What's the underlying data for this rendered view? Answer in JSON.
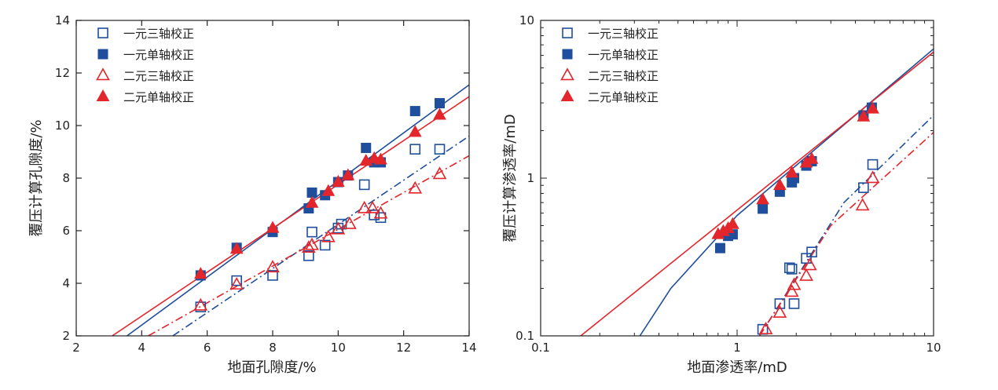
{
  "colors": {
    "blue": "#1f4e9c",
    "red": "#e3262c",
    "axis": "#222222"
  },
  "chart_data": [
    {
      "type": "scatter",
      "xlabel": "地面孔隙度/%",
      "ylabel": "覆压计算孔隙度/%",
      "xlim": [
        2,
        14
      ],
      "ylim": [
        2,
        14
      ],
      "xticks": [
        "2",
        "4",
        "6",
        "8",
        "10",
        "12",
        "14"
      ],
      "yticks": [
        "2",
        "4",
        "6",
        "8",
        "10",
        "12",
        "14"
      ],
      "legend_position": "top-left",
      "series": [
        {
          "name": "一元三轴校正",
          "marker": "square-open",
          "color": "#1f4e9c",
          "x": [
            5.8,
            6.9,
            8.0,
            9.1,
            9.2,
            9.6,
            10.0,
            10.1,
            10.8,
            11.1,
            11.3,
            12.35,
            13.1
          ],
          "y": [
            3.1,
            4.1,
            4.3,
            5.05,
            5.95,
            5.45,
            6.1,
            6.25,
            7.75,
            6.6,
            6.5,
            9.1,
            9.1
          ]
        },
        {
          "name": "一元单轴校正",
          "marker": "square-filled",
          "color": "#1f4e9c",
          "x": [
            5.8,
            6.9,
            8.0,
            9.1,
            9.2,
            9.6,
            10.0,
            10.3,
            10.85,
            11.1,
            11.3,
            12.35,
            13.1
          ],
          "y": [
            4.3,
            5.35,
            5.95,
            6.85,
            7.45,
            7.35,
            7.85,
            8.1,
            9.15,
            8.6,
            8.6,
            10.55,
            10.85
          ]
        },
        {
          "name": "二元三轴校正",
          "marker": "triangle-open",
          "color": "#e3262c",
          "x": [
            5.8,
            6.9,
            8.0,
            9.1,
            9.2,
            9.7,
            10.0,
            10.35,
            10.8,
            11.05,
            11.3,
            12.35,
            13.1
          ],
          "y": [
            3.15,
            3.95,
            4.6,
            5.35,
            5.45,
            5.75,
            6.05,
            6.25,
            6.85,
            6.85,
            6.65,
            7.6,
            8.15
          ]
        },
        {
          "name": "二元单轴校正",
          "marker": "triangle-filled",
          "color": "#e3262c",
          "x": [
            5.8,
            6.9,
            8.0,
            9.2,
            9.7,
            10.0,
            10.3,
            10.85,
            11.1,
            11.3,
            12.35,
            13.1
          ],
          "y": [
            4.35,
            5.3,
            6.1,
            7.05,
            7.5,
            7.85,
            8.1,
            8.65,
            8.75,
            8.7,
            9.75,
            10.4
          ]
        }
      ],
      "lines": [
        {
          "series": "一元单轴校正",
          "style": "solid",
          "color": "#1f4e9c",
          "x": [
            3.55,
            14
          ],
          "y": [
            2,
            11.55
          ]
        },
        {
          "series": "二元单轴校正",
          "style": "solid",
          "color": "#e3262c",
          "x": [
            3.1,
            14
          ],
          "y": [
            2,
            11.1
          ]
        },
        {
          "series": "一元三轴校正",
          "style": "dashdot",
          "color": "#1f4e9c",
          "x": [
            4.95,
            14
          ],
          "y": [
            2,
            9.6
          ]
        },
        {
          "series": "二元三轴校正",
          "style": "dashdot",
          "color": "#e3262c",
          "x": [
            4.2,
            14
          ],
          "y": [
            2,
            8.85
          ]
        }
      ]
    },
    {
      "type": "scatter",
      "scale": "log-log",
      "xlabel": "地面渗透率/mD",
      "ylabel": "覆压计算渗透率/mD",
      "xlim": [
        0.1,
        10
      ],
      "ylim": [
        0.1,
        10
      ],
      "xticks": [
        "0.1",
        "1",
        "10"
      ],
      "yticks": [
        "0.1",
        "1",
        "10"
      ],
      "legend_position": "top-left",
      "series": [
        {
          "name": "一元三轴校正",
          "marker": "square-open",
          "color": "#1f4e9c",
          "x": [
            1.35,
            1.65,
            1.85,
            1.9,
            1.95,
            2.25,
            2.4,
            4.4,
            4.9
          ],
          "y": [
            0.11,
            0.16,
            0.27,
            0.265,
            0.16,
            0.31,
            0.34,
            0.87,
            1.22
          ]
        },
        {
          "name": "一元单轴校正",
          "marker": "square-filled",
          "color": "#1f4e9c",
          "x": [
            0.82,
            0.9,
            0.95,
            1.35,
            1.65,
            1.9,
            1.95,
            2.25,
            2.4,
            4.4,
            4.85
          ],
          "y": [
            0.36,
            0.43,
            0.44,
            0.64,
            0.82,
            0.94,
            1.0,
            1.2,
            1.28,
            2.5,
            2.8
          ]
        },
        {
          "name": "二元三轴校正",
          "marker": "triangle-open",
          "color": "#e3262c",
          "x": [
            1.4,
            1.65,
            1.9,
            1.95,
            2.25,
            2.35,
            4.35,
            4.9
          ],
          "y": [
            0.11,
            0.14,
            0.19,
            0.21,
            0.24,
            0.28,
            0.67,
            1.0
          ]
        },
        {
          "name": "二元单轴校正",
          "marker": "triangle-filled",
          "color": "#e3262c",
          "x": [
            0.8,
            0.85,
            0.9,
            0.95,
            1.35,
            1.65,
            1.9,
            2.25,
            2.4,
            4.4,
            4.9
          ],
          "y": [
            0.44,
            0.46,
            0.48,
            0.51,
            0.73,
            0.9,
            1.08,
            1.25,
            1.32,
            2.45,
            2.75
          ]
        }
      ],
      "lines": [
        {
          "series": "一元单轴校正",
          "style": "solid",
          "color": "#1f4e9c",
          "x": [
            0.32,
            0.46,
            1.0,
            10
          ],
          "y": [
            0.1,
            0.2,
            0.58,
            6.6
          ]
        },
        {
          "series": "二元单轴校正",
          "style": "solid",
          "color": "#e3262c",
          "x": [
            0.16,
            10
          ],
          "y": [
            0.1,
            6.3
          ]
        },
        {
          "series": "一元三轴校正",
          "style": "dashdot",
          "color": "#1f4e9c",
          "x": [
            1.3,
            3.5,
            10
          ],
          "y": [
            0.1,
            0.7,
            2.5
          ]
        },
        {
          "series": "二元三轴校正",
          "style": "dashdot",
          "color": "#e3262c",
          "x": [
            1.3,
            3.0,
            10
          ],
          "y": [
            0.1,
            0.5,
            1.95
          ]
        }
      ]
    }
  ]
}
